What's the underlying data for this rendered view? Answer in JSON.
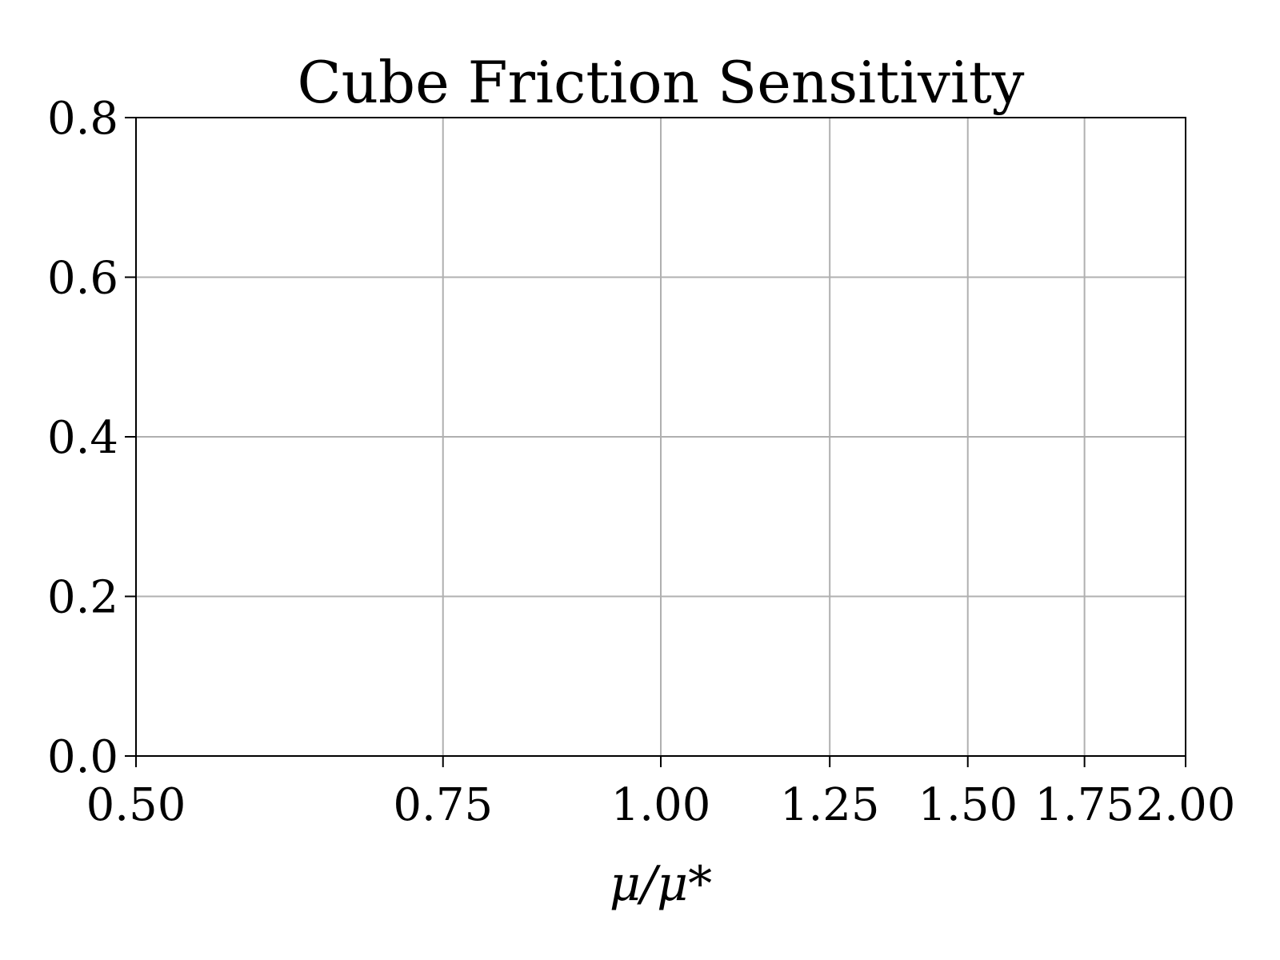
{
  "chart_data": {
    "type": "line",
    "title": "Cube Friction Sensitivity",
    "xlabel": "μ/μ*",
    "ylabel": "",
    "xscale": "log",
    "xlim": [
      0.5,
      2.0
    ],
    "ylim": [
      0.0,
      0.8
    ],
    "xticks": [
      0.5,
      0.75,
      1.0,
      1.25,
      1.5,
      1.75,
      2.0
    ],
    "xtick_labels": [
      "0.50",
      "0.75",
      "1.00",
      "1.25",
      "1.50",
      "1.75",
      "2.00"
    ],
    "yticks": [
      0.0,
      0.2,
      0.4,
      0.6,
      0.8
    ],
    "ytick_labels": [
      "0.0",
      "0.2",
      "0.4",
      "0.6",
      "0.8"
    ],
    "grid": true,
    "series": []
  }
}
